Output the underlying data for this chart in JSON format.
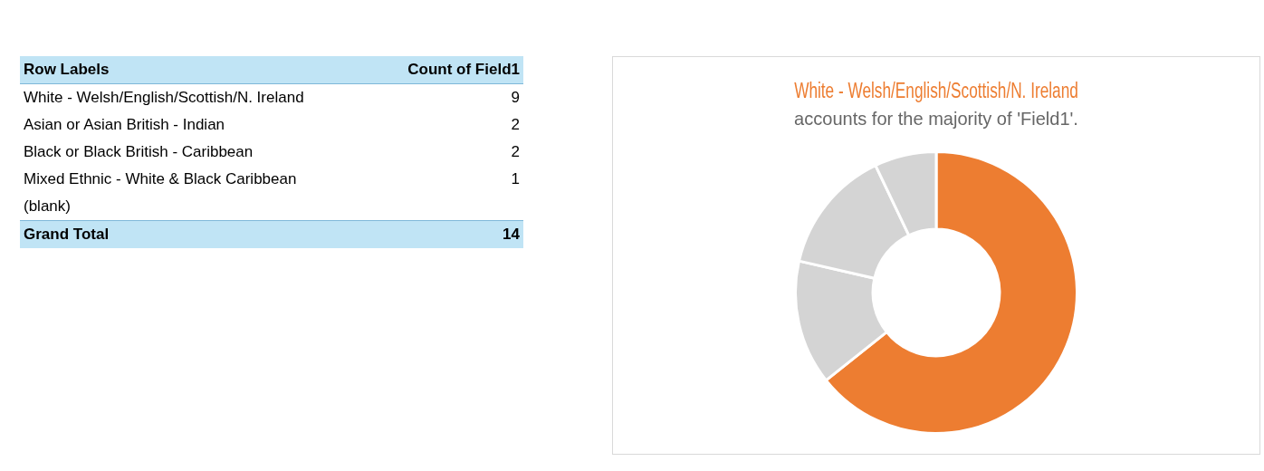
{
  "chart_data": [
    {
      "type": "other",
      "annotations": [
        "Row Labels",
        "Count of Field1",
        "White - Welsh/English/Scottish/N. Ireland",
        "9",
        "Asian or Asian British - Indian",
        "2",
        "Black or Black British - Caribbean",
        "2",
        "Mixed Ethnic - White & Black Caribbean",
        "1",
        "(blank)",
        "Grand Total",
        "14"
      ]
    },
    {
      "type": "donut",
      "title": "White - Welsh/English/Scottish/N. Ireland",
      "subtitle": "accounts for the majority of 'Field1'.",
      "categories": [
        null,
        null,
        null,
        null
      ],
      "values": [
        64.3,
        14.3,
        14.3,
        7.1
      ],
      "colors": [
        "#ed7d31",
        "#d4d4d4",
        "#d4d4d4",
        "#d4d4d4"
      ],
      "legend": false
    }
  ]
}
